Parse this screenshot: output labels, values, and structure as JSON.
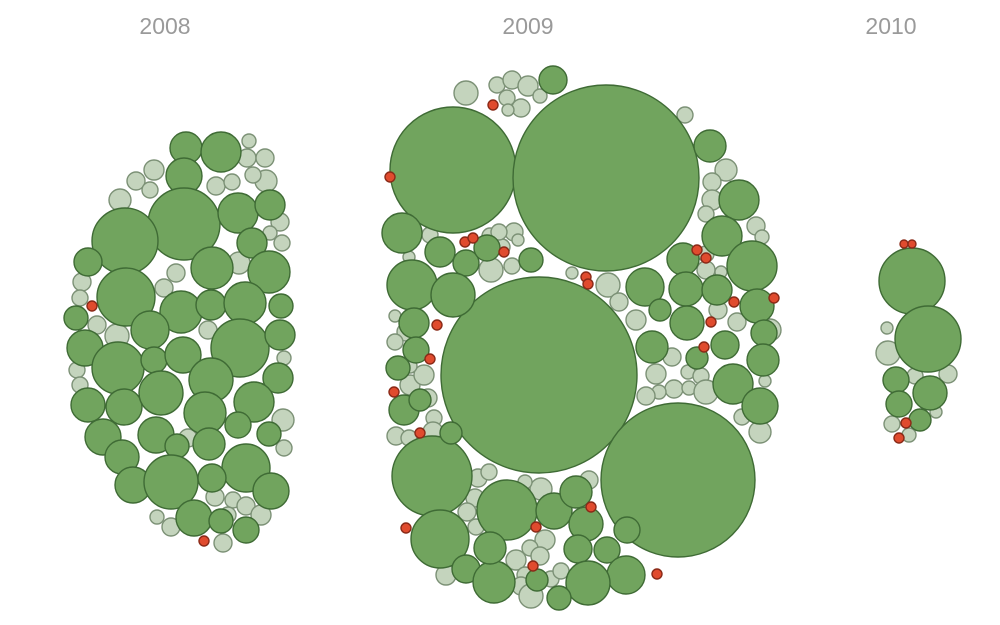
{
  "chart_data": {
    "type": "bubble-cluster",
    "title": "",
    "categories": [
      "2008",
      "2009",
      "2010"
    ],
    "legend": [],
    "category_colors": {
      "large": "#71a45e",
      "small": "#c4d4bd",
      "highlight": "#e04b2e"
    },
    "stroke_colors": {
      "large": "#3f6b35",
      "small": "#7c9176",
      "highlight": "#8a2a18"
    },
    "label_color": "#9a9a9a",
    "groups": [
      {
        "year": "2008",
        "counts": {
          "large": 50,
          "small": 42,
          "highlight": 2
        },
        "approx_radii": {
          "large": [
            33,
            14
          ],
          "small": [
            7,
            13
          ],
          "highlight": 5
        }
      },
      {
        "year": "2009",
        "counts": {
          "large": 95,
          "small": 75,
          "highlight": 20
        },
        "approx_radii": {
          "large": [
            94,
            14
          ],
          "small": [
            7,
            13
          ],
          "highlight": 5
        }
      },
      {
        "year": "2010",
        "counts": {
          "large": 6,
          "small": 6,
          "highlight": 5
        },
        "approx_radii": {
          "large": [
            33,
            14
          ],
          "small": [
            6,
            12
          ],
          "highlight": 5
        }
      }
    ]
  }
}
